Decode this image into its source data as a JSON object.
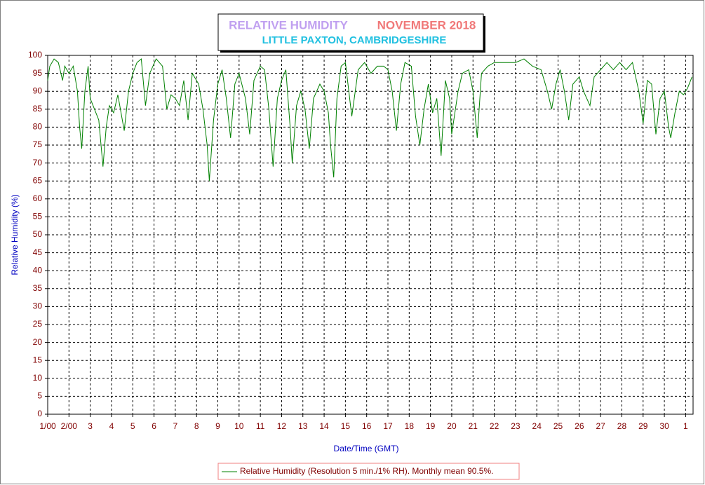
{
  "chart_data": {
    "type": "line",
    "title": "RELATIVE HUMIDITY",
    "period": "NOVEMBER 2018",
    "subtitle": "LITTLE PAXTON, CAMBRIDGESHIRE",
    "x_label": "Date/Time (GMT)",
    "y_label": "Relative Humidity (%)",
    "x": [
      1.0,
      1.1,
      1.3,
      1.5,
      1.7,
      1.8,
      2.0,
      2.2,
      2.4,
      2.5,
      2.6,
      2.75,
      2.9,
      3.0,
      3.2,
      3.4,
      3.6,
      3.75,
      3.9,
      4.1,
      4.3,
      4.6,
      4.8,
      5.0,
      5.2,
      5.4,
      5.6,
      5.8,
      6.1,
      6.4,
      6.6,
      6.8,
      7.0,
      7.2,
      7.4,
      7.6,
      7.8,
      8.1,
      8.3,
      8.5,
      8.6,
      8.8,
      9.0,
      9.2,
      9.4,
      9.6,
      9.8,
      10.0,
      10.3,
      10.5,
      10.7,
      11.0,
      11.2,
      11.4,
      11.6,
      11.8,
      12.0,
      12.2,
      12.4,
      12.5,
      12.7,
      12.9,
      13.1,
      13.3,
      13.5,
      13.8,
      14.0,
      14.2,
      14.3,
      14.45,
      14.6,
      14.8,
      15.0,
      15.3,
      15.6,
      15.9,
      16.2,
      16.5,
      16.8,
      17.0,
      17.2,
      17.4,
      17.6,
      17.8,
      18.1,
      18.3,
      18.5,
      18.7,
      18.9,
      19.1,
      19.3,
      19.5,
      19.7,
      19.9,
      20.0,
      20.3,
      20.5,
      20.8,
      21.0,
      21.2,
      21.4,
      21.7,
      22.0,
      22.5,
      23.0,
      23.4,
      23.8,
      24.2,
      24.5,
      24.7,
      24.9,
      25.1,
      25.3,
      25.5,
      25.7,
      26.0,
      26.2,
      26.5,
      26.7,
      27.0,
      27.3,
      27.6,
      27.9,
      28.2,
      28.5,
      28.8,
      29.0,
      29.2,
      29.4,
      29.6,
      29.8,
      30.0,
      30.2,
      30.3,
      30.5,
      30.7,
      30.9,
      31.1,
      31.3
    ],
    "series": [
      {
        "name": "Relative Humidity (Resolution 5 min./1% RH). Monthly mean 90.5%.",
        "color": "#008000",
        "values": [
          93,
          97,
          99,
          98,
          93,
          97,
          95,
          97,
          90,
          80,
          74,
          90,
          97,
          88,
          85,
          82,
          69,
          80,
          86,
          84,
          89,
          79,
          90,
          95,
          98,
          99,
          86,
          95,
          99,
          97,
          85,
          89,
          88,
          86,
          93,
          82,
          95,
          92,
          85,
          75,
          65,
          82,
          92,
          96,
          88,
          77,
          92,
          95,
          88,
          78,
          93,
          97,
          96,
          85,
          69,
          88,
          93,
          96,
          80,
          70,
          86,
          90,
          85,
          74,
          88,
          92,
          90,
          84,
          75,
          66,
          88,
          97,
          98,
          83,
          96,
          98,
          95,
          97,
          97,
          96,
          90,
          79,
          92,
          98,
          97,
          83,
          75,
          85,
          92,
          84,
          88,
          72,
          93,
          88,
          78,
          90,
          95,
          96,
          90,
          77,
          95,
          97,
          98,
          98,
          98,
          99,
          97,
          96,
          90,
          85,
          92,
          96,
          90,
          82,
          92,
          94,
          90,
          86,
          94,
          96,
          98,
          96,
          98,
          96,
          98,
          90,
          81,
          93,
          92,
          78,
          88,
          90,
          80,
          77,
          84,
          90,
          89,
          91,
          94
        ]
      }
    ],
    "xlim": [
      1,
      31.35
    ],
    "xticks": [
      {
        "value": 1,
        "label": "1/00"
      },
      {
        "value": 2,
        "label": "2/00"
      },
      3,
      4,
      5,
      6,
      7,
      8,
      9,
      10,
      11,
      12,
      13,
      14,
      15,
      16,
      17,
      18,
      19,
      20,
      21,
      22,
      23,
      24,
      25,
      26,
      27,
      28,
      29,
      30,
      {
        "value": 31,
        "label": "1"
      }
    ],
    "ylim": [
      0,
      100
    ],
    "yticks": [
      0,
      5,
      10,
      15,
      20,
      25,
      30,
      35,
      40,
      45,
      50,
      55,
      60,
      65,
      70,
      75,
      80,
      85,
      90,
      95,
      100
    ],
    "grid": true
  }
}
